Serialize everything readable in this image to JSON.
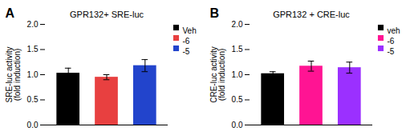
{
  "chart_data": [
    {
      "type": "bar",
      "title": "GPR132+ SRE-luc",
      "ylabel": "SRE-luc activity\n(fold induction)",
      "categories": [
        "Veh",
        "-6",
        "-5"
      ],
      "values": [
        1.03,
        0.95,
        1.18
      ],
      "errors": [
        0.1,
        0.05,
        0.12
      ],
      "colors": [
        "#000000",
        "#e84040",
        "#2244cc"
      ],
      "ylim": [
        0.0,
        2.0
      ],
      "yticks": [
        {
          "value": 0.0,
          "label": "0.0"
        },
        0.5,
        {
          "value": 1.0,
          "label": "1.0"
        },
        1.5,
        {
          "value": 2.0,
          "label": "2.0"
        }
      ],
      "legend": "upper right",
      "grid": false,
      "tick_labels": "y",
      "annotations": [
        "A"
      ]
    },
    {
      "type": "bar",
      "title": "GPR132 + CRE-luc",
      "ylabel": "CRE-luc activity\n(fold induction)",
      "categories": [
        "veh",
        "-6",
        "-5"
      ],
      "values": [
        1.02,
        1.17,
        1.14
      ],
      "errors": [
        0.04,
        0.1,
        0.11
      ],
      "colors": [
        "#000000",
        "#ff1493",
        "#9b30ff"
      ],
      "ylim": [
        0.0,
        2.0
      ],
      "yticks": [
        {
          "value": 0.0,
          "label": "0.0"
        },
        0.5,
        {
          "value": 1.0,
          "label": "1.0"
        },
        1.5,
        {
          "value": 2.0,
          "label": "2.0"
        }
      ],
      "legend": "upper right",
      "grid": false,
      "tick_labels": "y",
      "annotations": [
        "B"
      ]
    }
  ]
}
